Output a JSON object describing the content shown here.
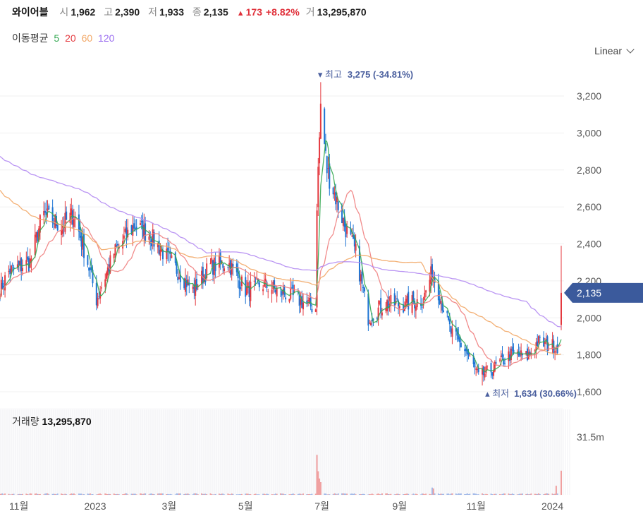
{
  "header": {
    "name": "와이어블",
    "open_label": "시",
    "open": "1,962",
    "high_label": "고",
    "high": "2,390",
    "low_label": "저",
    "low": "1,933",
    "close_label": "종",
    "close": "2,135",
    "change": "173",
    "change_pct": "+8.82%",
    "volume_label": "거",
    "volume": "13,295,870"
  },
  "ma_legend": {
    "title": "이동평균",
    "periods": [
      "5",
      "20",
      "60",
      "120"
    ]
  },
  "scale_mode": "Linear",
  "annotations": {
    "max_text": "최고",
    "max_value": "3,275 (-34.81%)",
    "min_text": "최저",
    "min_value": "1,634 (30.66%)",
    "current_price": "2,135"
  },
  "volume_panel": {
    "label": "거래량",
    "value": "13,295,870",
    "axis_label": "31.5m"
  },
  "colors": {
    "up": "#e4393f",
    "down": "#1d74d4",
    "ma5": "#34a852",
    "ma20": "#f08080",
    "ma60": "#f2a766",
    "ma120": "#b38af2",
    "price_tag": "#3b5a9c"
  },
  "chart_data": {
    "type": "candlestick",
    "y_ticks": [
      "1,600",
      "1,800",
      "2,000",
      "2,200",
      "2,400",
      "2,600",
      "2,800",
      "3,000",
      "3,200"
    ],
    "ylim": [
      1530,
      3350
    ],
    "x_ticks": [
      "11월",
      "2023",
      "3월",
      "5월",
      "7월",
      "9월",
      "11월",
      "2024"
    ],
    "price_waypoints": [
      [
        "2022-10-17",
        2150
      ],
      [
        "2022-10-24",
        2250
      ],
      [
        "2022-11-10",
        2300
      ],
      [
        "2022-11-20",
        2560
      ],
      [
        "2022-12-05",
        2500
      ],
      [
        "2022-12-15",
        2560
      ],
      [
        "2022-12-26",
        2300
      ],
      [
        "2023-01-02",
        2100
      ],
      [
        "2023-01-16",
        2350
      ],
      [
        "2023-02-01",
        2500
      ],
      [
        "2023-02-13",
        2450
      ],
      [
        "2023-03-06",
        2270
      ],
      [
        "2023-03-20",
        2150
      ],
      [
        "2023-04-03",
        2280
      ],
      [
        "2023-04-17",
        2300
      ],
      [
        "2023-05-01",
        2150
      ],
      [
        "2023-05-15",
        2180
      ],
      [
        "2023-06-05",
        2120
      ],
      [
        "2023-06-26",
        2050
      ],
      [
        "2023-06-27",
        2620
      ],
      [
        "2023-06-30",
        3150
      ],
      [
        "2023-07-05",
        2800
      ],
      [
        "2023-07-19",
        2500
      ],
      [
        "2023-07-28",
        2350
      ],
      [
        "2023-08-07",
        2000
      ],
      [
        "2023-08-21",
        2080
      ],
      [
        "2023-09-04",
        2070
      ],
      [
        "2023-09-20",
        2100
      ],
      [
        "2023-09-27",
        2250
      ],
      [
        "2023-10-04",
        2100
      ],
      [
        "2023-10-12",
        1920
      ],
      [
        "2023-10-24",
        1820
      ],
      [
        "2023-11-03",
        1680
      ],
      [
        "2023-11-14",
        1720
      ],
      [
        "2023-11-28",
        1800
      ],
      [
        "2023-12-12",
        1790
      ],
      [
        "2023-12-20",
        1870
      ],
      [
        "2023-12-29",
        1850
      ],
      [
        "2024-01-05",
        1850
      ],
      [
        "2024-01-08",
        2135
      ]
    ],
    "ma_end_values": {
      "ma5": 1930,
      "ma20": 1875,
      "ma60": 1800,
      "ma120": 1930
    },
    "max": {
      "date": "2023-06-30",
      "value": 3275
    },
    "min": {
      "date": "2023-11-06",
      "value": 1634
    },
    "volume_ylim": [
      0,
      31500000
    ],
    "volume_spikes": [
      [
        "2023-06-27",
        22000000
      ],
      [
        "2023-06-28",
        13000000
      ],
      [
        "2023-06-29",
        9000000
      ],
      [
        "2023-06-30",
        7000000
      ],
      [
        "2023-09-27",
        4000000
      ],
      [
        "2023-09-28",
        3500000
      ],
      [
        "2024-01-04",
        5000000
      ],
      [
        "2024-01-08",
        13295870
      ]
    ]
  }
}
